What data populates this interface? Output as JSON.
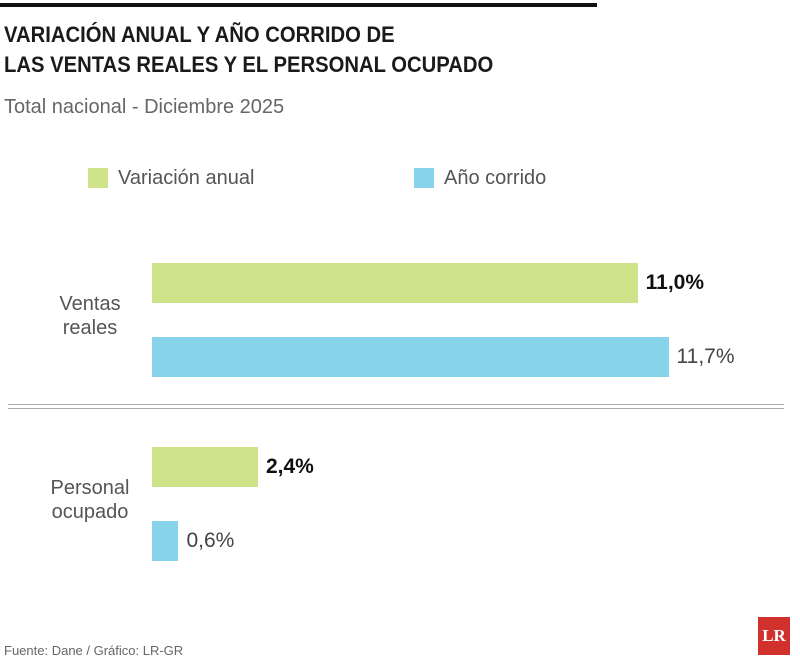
{
  "chart_data": {
    "type": "hbar",
    "title": "VARIACIÓN ANUAL Y AÑO CORRIDO DE\nLAS VENTAS REALES Y EL PERSONAL OCUPADO",
    "subtitle": "Total nacional - Diciembre 2025",
    "categories": [
      "Ventas\nreales",
      "Personal\nocupado"
    ],
    "series": [
      {
        "name": "Variación anual",
        "color": "#cfe38b",
        "values": [
          11.0,
          2.4
        ],
        "value_labels": [
          "11,0%",
          "2,4%"
        ]
      },
      {
        "name": "Año corrido",
        "color": "#87d3ea",
        "values": [
          11.7,
          0.6
        ],
        "value_labels": [
          "11,7%",
          "0,6%"
        ]
      }
    ],
    "source": "Fuente: Dane / Gráfico: LR-GR",
    "logo": "LR"
  }
}
